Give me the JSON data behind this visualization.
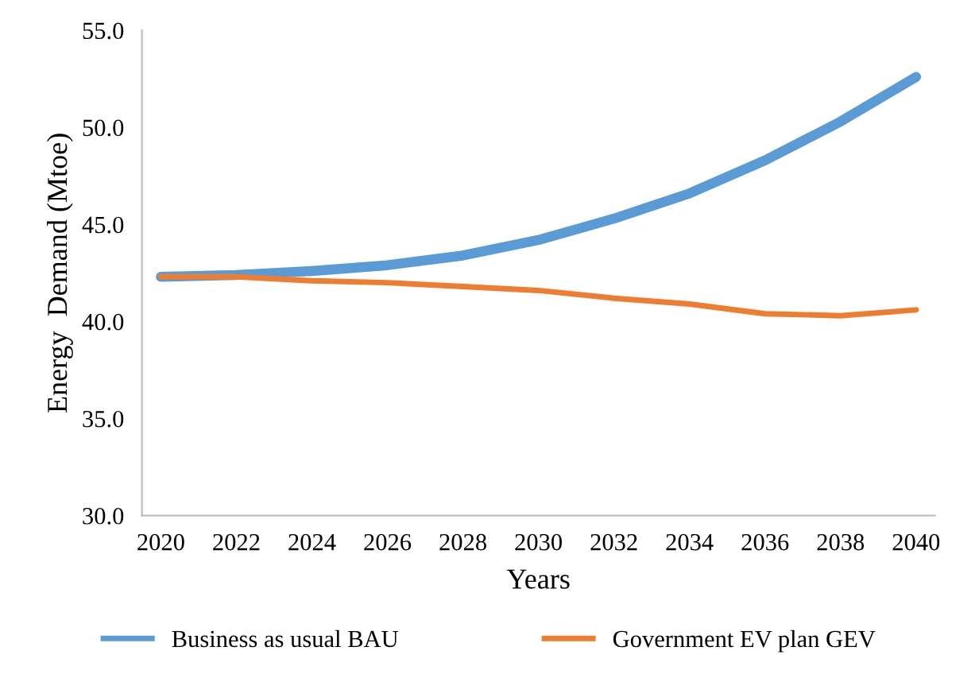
{
  "chart_data": {
    "type": "line",
    "xlabel": "Years",
    "ylabel": "Energy  Demand (Mtoe)",
    "x": [
      2020,
      2022,
      2024,
      2026,
      2028,
      2030,
      2032,
      2034,
      2036,
      2038,
      2040
    ],
    "series": [
      {
        "name": "Business as usual BAU",
        "color": "#5b9bd5",
        "values": [
          42.3,
          42.4,
          42.6,
          42.9,
          43.4,
          44.2,
          45.3,
          46.6,
          48.3,
          50.3,
          52.6
        ]
      },
      {
        "name": "Government EV plan GEV",
        "color": "#ed7d31",
        "values": [
          42.3,
          42.3,
          42.1,
          42.0,
          41.8,
          41.6,
          41.2,
          40.9,
          40.4,
          40.3,
          40.6
        ]
      }
    ],
    "xlim": [
      2019.5,
      2040.5
    ],
    "xticks": [
      2020,
      2022,
      2024,
      2026,
      2028,
      2030,
      2032,
      2034,
      2036,
      2038,
      2040
    ],
    "ylim": [
      30,
      55
    ],
    "yticks": [
      {
        "value": 30,
        "label": "30.0"
      },
      {
        "value": 35,
        "label": "35.0"
      },
      {
        "value": 40,
        "label": "40.0"
      },
      {
        "value": 45,
        "label": "45.0"
      },
      {
        "value": 50,
        "label": "50.0"
      },
      {
        "value": 55,
        "label": "55.0"
      }
    ],
    "grid": false,
    "legend": "bottom",
    "marker": "none",
    "line_style": "solid"
  }
}
